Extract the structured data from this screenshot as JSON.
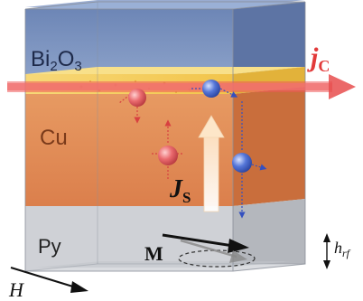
{
  "layers": {
    "bi2o3": {
      "base": "Bi",
      "sub1": "2",
      "mid": "O",
      "sub2": "3"
    },
    "cu": "Cu",
    "py": "Py"
  },
  "labels": {
    "jc": {
      "base": "j",
      "sub": "C"
    },
    "js": {
      "base": "J",
      "sub": "S"
    },
    "m": "M",
    "h": "H",
    "hrf": {
      "base": "h",
      "sub": "rf"
    }
  },
  "colors": {
    "bi2o3": "#5f79a8",
    "interface": "#f4cf5a",
    "cu": "#e08a52",
    "py": "#c9cbcf",
    "current": "#e84e4e",
    "spin_up": "#e25a60",
    "spin_down": "#3f5fc8"
  },
  "icons": [
    "current-arrow-icon",
    "spin-current-arrow-icon",
    "magnetization-arrow-icon",
    "field-arrow-icon",
    "spin-up-electron-icon",
    "spin-down-electron-icon",
    "double-arrow-icon"
  ]
}
